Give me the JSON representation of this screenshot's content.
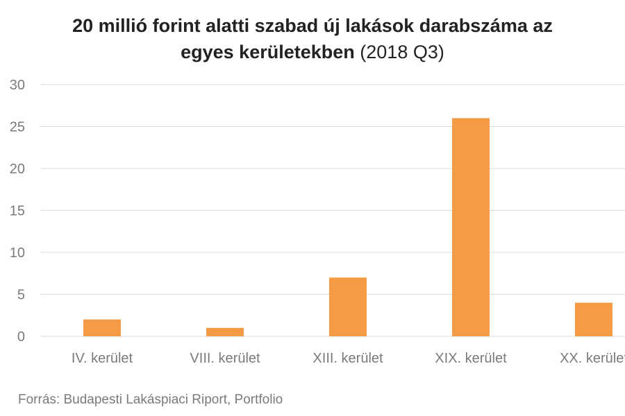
{
  "chart_data": {
    "type": "bar",
    "title_line1": "20 millió forint alatti szabad új lakások darabszáma az",
    "title_line2": "egyes kerületekben",
    "subtitle": "(2018 Q3)",
    "xlabel": "",
    "ylabel": "",
    "categories": [
      "IV. kerület",
      "VIII. kerület",
      "XIII. kerület",
      "XIX. kerület",
      "XX. kerület"
    ],
    "values": [
      2,
      1,
      7,
      26,
      4
    ],
    "ylim": [
      0,
      30
    ],
    "yticks": [
      0,
      5,
      10,
      15,
      20,
      25,
      30
    ],
    "grid": true,
    "bar_color": "#f59a45"
  },
  "source": "Forrás: Budapesti Lakáspiaci Riport, Portfolio"
}
